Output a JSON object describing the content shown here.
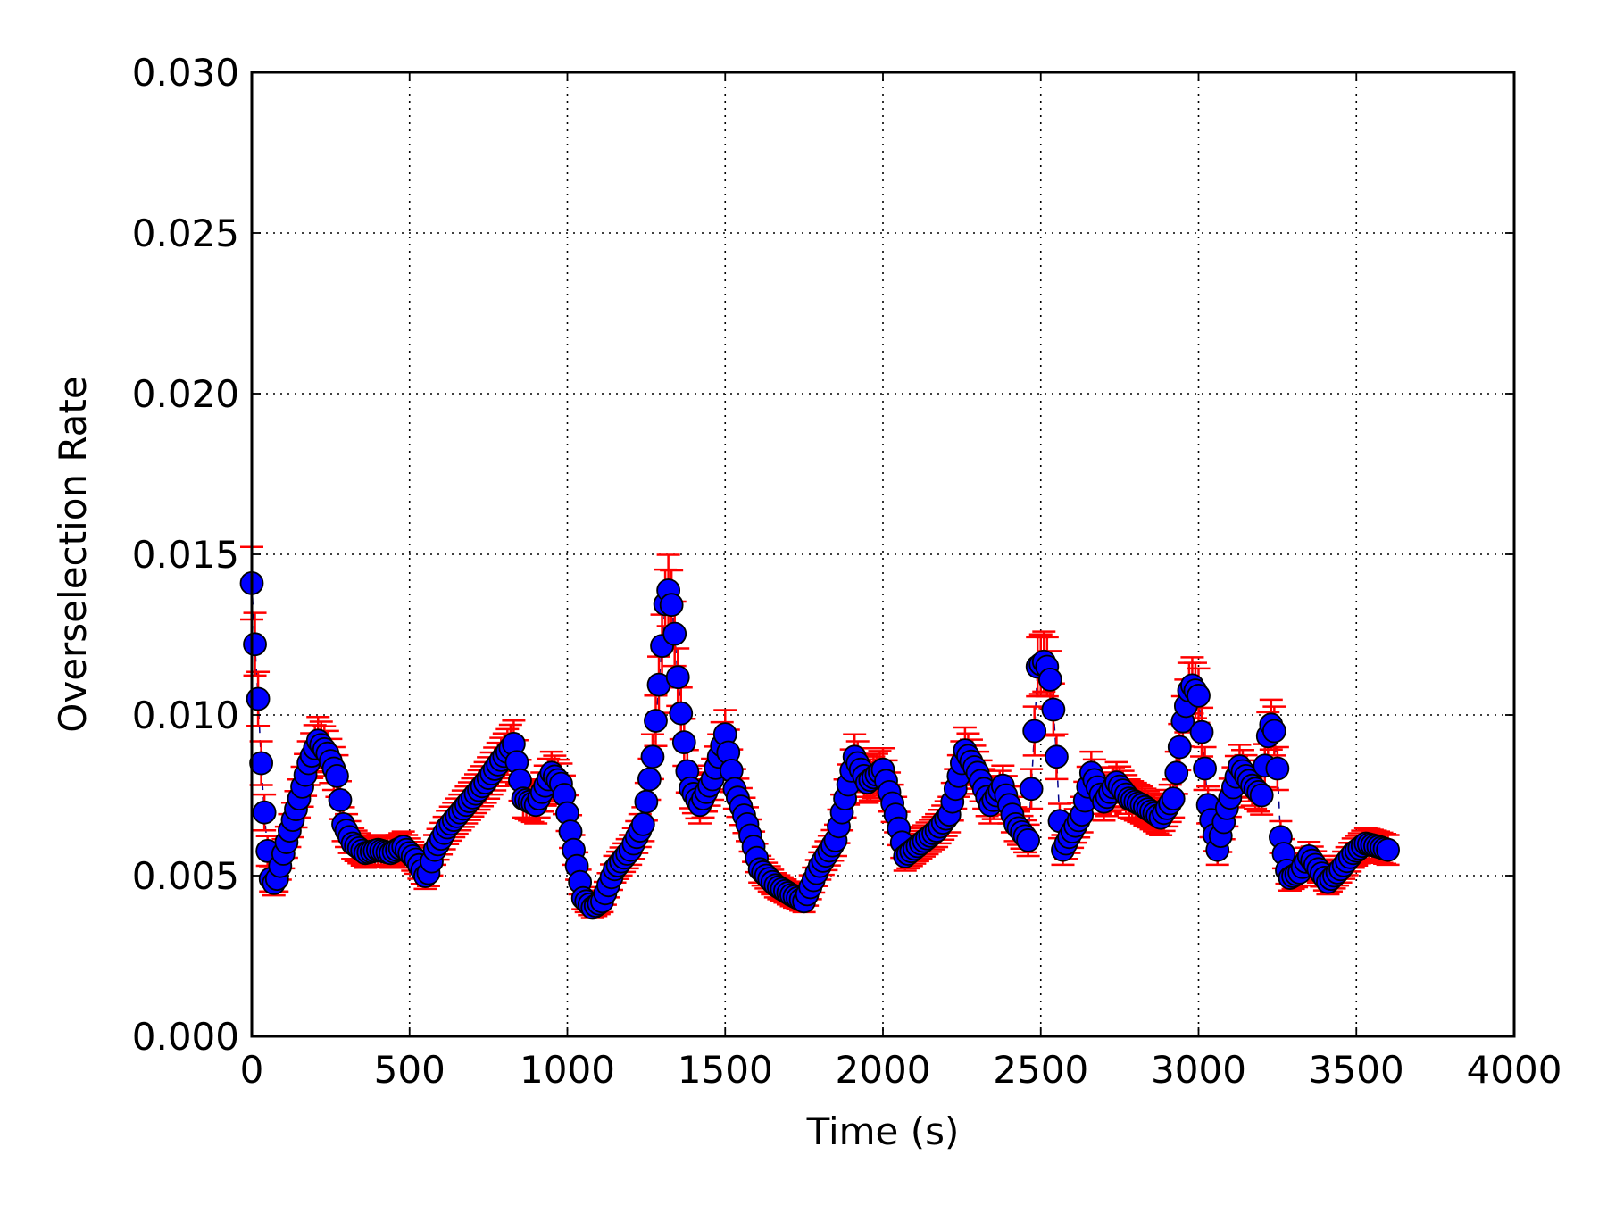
{
  "chart_data": {
    "type": "scatter",
    "title": "",
    "xlabel": "Time (s)",
    "ylabel": "Overselection Rate",
    "xlim": [
      0,
      4000
    ],
    "ylim": [
      0,
      0.03
    ],
    "xticks": [
      "0",
      "500",
      "1000",
      "1500",
      "2000",
      "2500",
      "3000",
      "3500",
      "4000"
    ],
    "yticks": [
      "0.000",
      "0.005",
      "0.010",
      "0.015",
      "0.020",
      "0.025",
      "0.030"
    ],
    "grid": true,
    "marker_color": "#0000ff",
    "marker_edge_color": "#000000",
    "errorbar_color": "#ff0000",
    "connector_color": "#00008b",
    "sampling_interval_s": 10,
    "series": [
      {
        "error_rel": 0.08,
        "keyframes": [
          [
            0,
            0.0141
          ],
          [
            10,
            0.0122
          ],
          [
            20,
            0.0105
          ],
          [
            30,
            0.0085
          ],
          [
            45,
            0.0062
          ],
          [
            60,
            0.0049
          ],
          [
            75,
            0.0047
          ],
          [
            95,
            0.0055
          ],
          [
            120,
            0.0064
          ],
          [
            150,
            0.0074
          ],
          [
            180,
            0.0085
          ],
          [
            210,
            0.0092
          ],
          [
            240,
            0.0088
          ],
          [
            270,
            0.0081
          ],
          [
            290,
            0.0066
          ],
          [
            320,
            0.006
          ],
          [
            360,
            0.0057
          ],
          [
            400,
            0.0058
          ],
          [
            440,
            0.0057
          ],
          [
            480,
            0.0059
          ],
          [
            520,
            0.0055
          ],
          [
            555,
            0.0049
          ],
          [
            580,
            0.0058
          ],
          [
            620,
            0.0065
          ],
          [
            680,
            0.0072
          ],
          [
            740,
            0.0079
          ],
          [
            790,
            0.0086
          ],
          [
            830,
            0.0091
          ],
          [
            860,
            0.0074
          ],
          [
            900,
            0.0072
          ],
          [
            950,
            0.0082
          ],
          [
            985,
            0.0078
          ],
          [
            1020,
            0.0058
          ],
          [
            1050,
            0.0043
          ],
          [
            1080,
            0.004
          ],
          [
            1110,
            0.0042
          ],
          [
            1150,
            0.0052
          ],
          [
            1200,
            0.0058
          ],
          [
            1240,
            0.0066
          ],
          [
            1270,
            0.0087
          ],
          [
            1295,
            0.0115
          ],
          [
            1315,
            0.0141
          ],
          [
            1335,
            0.0132
          ],
          [
            1355,
            0.0105
          ],
          [
            1385,
            0.0078
          ],
          [
            1420,
            0.0072
          ],
          [
            1460,
            0.008
          ],
          [
            1500,
            0.0094
          ],
          [
            1530,
            0.0077
          ],
          [
            1570,
            0.0066
          ],
          [
            1610,
            0.0052
          ],
          [
            1660,
            0.0047
          ],
          [
            1710,
            0.0044
          ],
          [
            1750,
            0.0042
          ],
          [
            1800,
            0.0053
          ],
          [
            1850,
            0.0061
          ],
          [
            1880,
            0.0074
          ],
          [
            1910,
            0.0087
          ],
          [
            1950,
            0.0079
          ],
          [
            2000,
            0.0083
          ],
          [
            2040,
            0.0069
          ],
          [
            2070,
            0.0056
          ],
          [
            2120,
            0.006
          ],
          [
            2170,
            0.0064
          ],
          [
            2210,
            0.0069
          ],
          [
            2260,
            0.0089
          ],
          [
            2300,
            0.0082
          ],
          [
            2340,
            0.0072
          ],
          [
            2380,
            0.0078
          ],
          [
            2420,
            0.0066
          ],
          [
            2460,
            0.0061
          ],
          [
            2475,
            0.0085
          ],
          [
            2490,
            0.0115
          ],
          [
            2515,
            0.0117
          ],
          [
            2535,
            0.0109
          ],
          [
            2550,
            0.0087
          ],
          [
            2565,
            0.0057
          ],
          [
            2590,
            0.0062
          ],
          [
            2630,
            0.0069
          ],
          [
            2660,
            0.0082
          ],
          [
            2700,
            0.0073
          ],
          [
            2740,
            0.0079
          ],
          [
            2780,
            0.0074
          ],
          [
            2820,
            0.0072
          ],
          [
            2880,
            0.0068
          ],
          [
            2920,
            0.0074
          ],
          [
            2950,
            0.0098
          ],
          [
            2975,
            0.011
          ],
          [
            3000,
            0.0106
          ],
          [
            3030,
            0.0072
          ],
          [
            3060,
            0.0058
          ],
          [
            3090,
            0.0071
          ],
          [
            3130,
            0.0084
          ],
          [
            3170,
            0.0078
          ],
          [
            3200,
            0.0075
          ],
          [
            3225,
            0.0098
          ],
          [
            3245,
            0.0094
          ],
          [
            3260,
            0.0062
          ],
          [
            3285,
            0.0049
          ],
          [
            3320,
            0.0051
          ],
          [
            3350,
            0.0056
          ],
          [
            3380,
            0.0052
          ],
          [
            3410,
            0.0048
          ],
          [
            3450,
            0.0052
          ],
          [
            3490,
            0.0057
          ],
          [
            3530,
            0.006
          ],
          [
            3570,
            0.0059
          ],
          [
            3600,
            0.0058
          ]
        ]
      }
    ]
  }
}
